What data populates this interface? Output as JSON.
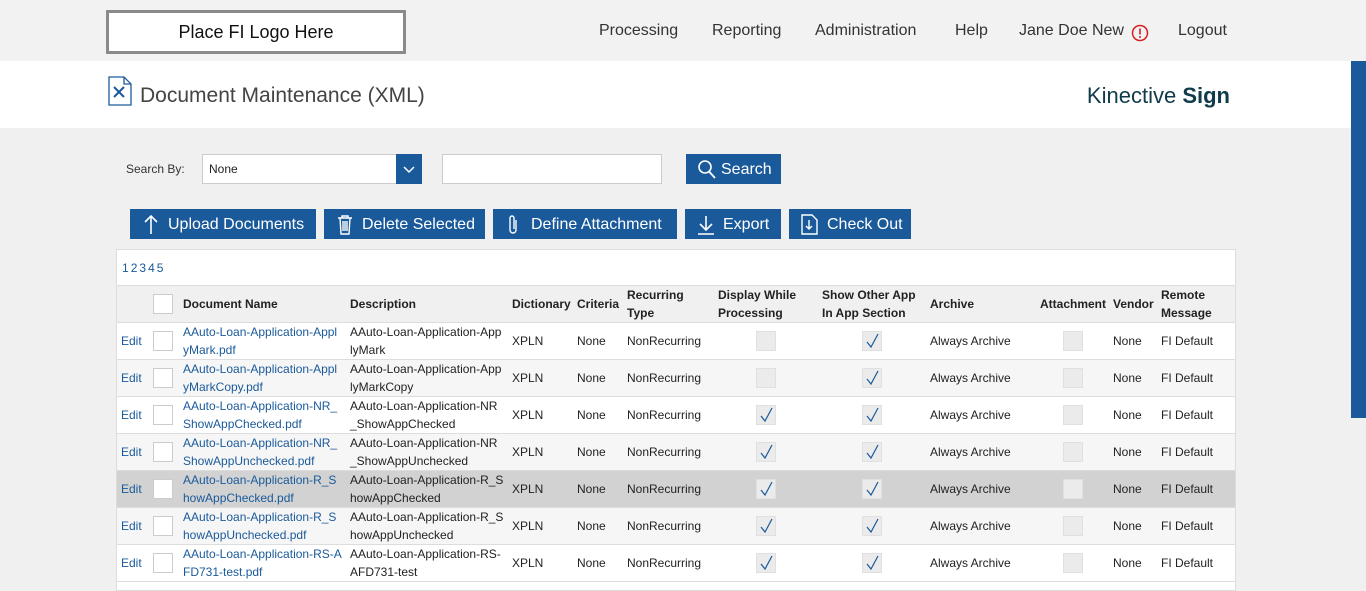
{
  "header": {
    "logo": "Place FI Logo Here",
    "nav": [
      "Processing",
      "Reporting",
      "Administration",
      "Help",
      "Jane Doe New",
      "Logout"
    ]
  },
  "title_bar": {
    "title": "Document Maintenance (XML)",
    "brand": "Kinective",
    "brand_bold": "Sign"
  },
  "search": {
    "label": "Search By:",
    "select": "None",
    "button": "Search"
  },
  "toolbar": [
    "Upload Documents",
    "Delete Selected",
    "Define Attachment",
    "Export",
    "Check Out"
  ],
  "pagination": [
    "1",
    "2",
    "3",
    "4",
    "5"
  ],
  "table": {
    "edit_label": "Edit",
    "columns": [
      "Document Name",
      "Description",
      "Dictionary",
      "Criteria",
      "Recurring Type",
      "Display While Processing",
      "Show Other App In App Section",
      "Archive",
      "Attachment",
      "Vendor",
      "Remote Message"
    ],
    "highlighted_row": 4,
    "rows": [
      {
        "name": "AAuto-Loan-Application-ApplyMark.pdf",
        "description": "AAuto-Loan-Application-ApplyMark",
        "dictionary": "XPLN",
        "criteria": "None",
        "recurring": "NonRecurring",
        "display": false,
        "show": true,
        "archive": "Always Archive",
        "attachment": false,
        "vendor": "None",
        "remote": "FI Default"
      },
      {
        "name": "AAuto-Loan-Application-ApplyMarkCopy.pdf",
        "description": "AAuto-Loan-Application-ApplyMarkCopy",
        "dictionary": "XPLN",
        "criteria": "None",
        "recurring": "NonRecurring",
        "display": false,
        "show": true,
        "archive": "Always Archive",
        "attachment": false,
        "vendor": "None",
        "remote": "FI Default"
      },
      {
        "name": "AAuto-Loan-Application-NR_ShowAppChecked.pdf",
        "description": "AAuto-Loan-Application-NR_ShowAppChecked",
        "dictionary": "XPLN",
        "criteria": "None",
        "recurring": "NonRecurring",
        "display": true,
        "show": true,
        "archive": "Always Archive",
        "attachment": false,
        "vendor": "None",
        "remote": "FI Default"
      },
      {
        "name": "AAuto-Loan-Application-NR_ShowAppUnchecked.pdf",
        "description": "AAuto-Loan-Application-NR_ShowAppUnchecked",
        "dictionary": "XPLN",
        "criteria": "None",
        "recurring": "NonRecurring",
        "display": true,
        "show": true,
        "archive": "Always Archive",
        "attachment": false,
        "vendor": "None",
        "remote": "FI Default"
      },
      {
        "name": "AAuto-Loan-Application-R_ShowAppChecked.pdf",
        "description": "AAuto-Loan-Application-R_ShowAppChecked",
        "dictionary": "XPLN",
        "criteria": "None",
        "recurring": "NonRecurring",
        "display": true,
        "show": true,
        "archive": "Always Archive",
        "attachment": false,
        "vendor": "None",
        "remote": "FI Default"
      },
      {
        "name": "AAuto-Loan-Application-R_ShowAppUnchecked.pdf",
        "description": "AAuto-Loan-Application-R_ShowAppUnchecked",
        "dictionary": "XPLN",
        "criteria": "None",
        "recurring": "NonRecurring",
        "display": true,
        "show": true,
        "archive": "Always Archive",
        "attachment": false,
        "vendor": "None",
        "remote": "FI Default"
      },
      {
        "name": "AAuto-Loan-Application-RS-AFD731-test.pdf",
        "description": "AAuto-Loan-Application-RS-AFD731-test",
        "dictionary": "XPLN",
        "criteria": "None",
        "recurring": "NonRecurring",
        "display": true,
        "show": true,
        "archive": "Always Archive",
        "attachment": false,
        "vendor": "None",
        "remote": "FI Default"
      }
    ]
  }
}
